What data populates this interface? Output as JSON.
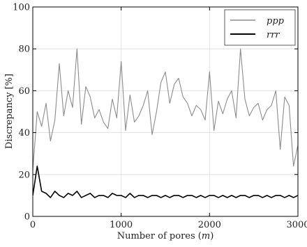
{
  "chart_data": {
    "type": "line",
    "title": "",
    "xlabel": "Number of pores (m)",
    "xlabel_parts": [
      "Number of pores (",
      "m",
      ")"
    ],
    "ylabel": "Discrepancy [%]",
    "xlim": [
      0,
      3000
    ],
    "ylim": [
      0,
      100
    ],
    "xticks": [
      0,
      1000,
      2000,
      3000
    ],
    "yticks": [
      0,
      20,
      40,
      60,
      80,
      100
    ],
    "grid": true,
    "legend_position": "top-right",
    "series": [
      {
        "name": "ppp",
        "color": "#8c8c8c",
        "x": [
          0,
          50,
          100,
          150,
          200,
          250,
          300,
          350,
          400,
          450,
          500,
          550,
          600,
          650,
          700,
          750,
          800,
          850,
          900,
          950,
          1000,
          1050,
          1100,
          1150,
          1200,
          1250,
          1300,
          1350,
          1400,
          1450,
          1500,
          1550,
          1600,
          1650,
          1700,
          1750,
          1800,
          1850,
          1900,
          1950,
          2000,
          2050,
          2100,
          2150,
          2200,
          2250,
          2300,
          2350,
          2400,
          2450,
          2500,
          2550,
          2600,
          2650,
          2700,
          2750,
          2800,
          2850,
          2900,
          2950,
          3000
        ],
        "y": [
          22,
          50,
          43,
          54,
          36,
          46,
          73,
          48,
          60,
          52,
          80,
          44,
          62,
          57,
          47,
          51,
          45,
          42,
          56,
          47,
          74,
          41,
          58,
          45,
          48,
          53,
          60,
          39,
          50,
          64,
          69,
          54,
          63,
          66,
          57,
          54,
          48,
          53,
          51,
          46,
          69,
          41,
          55,
          49,
          56,
          60,
          47,
          80,
          56,
          48,
          52,
          54,
          46,
          51,
          53,
          60,
          32,
          57,
          53,
          24,
          34
        ]
      },
      {
        "name": "rrr",
        "color": "#000000",
        "x": [
          0,
          50,
          100,
          150,
          200,
          250,
          300,
          350,
          400,
          450,
          500,
          550,
          600,
          650,
          700,
          750,
          800,
          850,
          900,
          950,
          1000,
          1050,
          1100,
          1150,
          1200,
          1250,
          1300,
          1350,
          1400,
          1450,
          1500,
          1550,
          1600,
          1650,
          1700,
          1750,
          1800,
          1850,
          1900,
          1950,
          2000,
          2050,
          2100,
          2150,
          2200,
          2250,
          2300,
          2350,
          2400,
          2450,
          2500,
          2550,
          2600,
          2650,
          2700,
          2750,
          2800,
          2850,
          2900,
          2950,
          3000
        ],
        "y": [
          10,
          24,
          12,
          11,
          9,
          12,
          10,
          9,
          11,
          10,
          12,
          9,
          10,
          11,
          9,
          10,
          10,
          9,
          11,
          10,
          10,
          9,
          11,
          9,
          10,
          10,
          9,
          10,
          10,
          9,
          10,
          9,
          10,
          10,
          9,
          10,
          10,
          9,
          10,
          9,
          10,
          10,
          9,
          10,
          9,
          10,
          9,
          10,
          10,
          9,
          10,
          10,
          9,
          10,
          9,
          10,
          10,
          9,
          10,
          9,
          10
        ]
      }
    ]
  }
}
